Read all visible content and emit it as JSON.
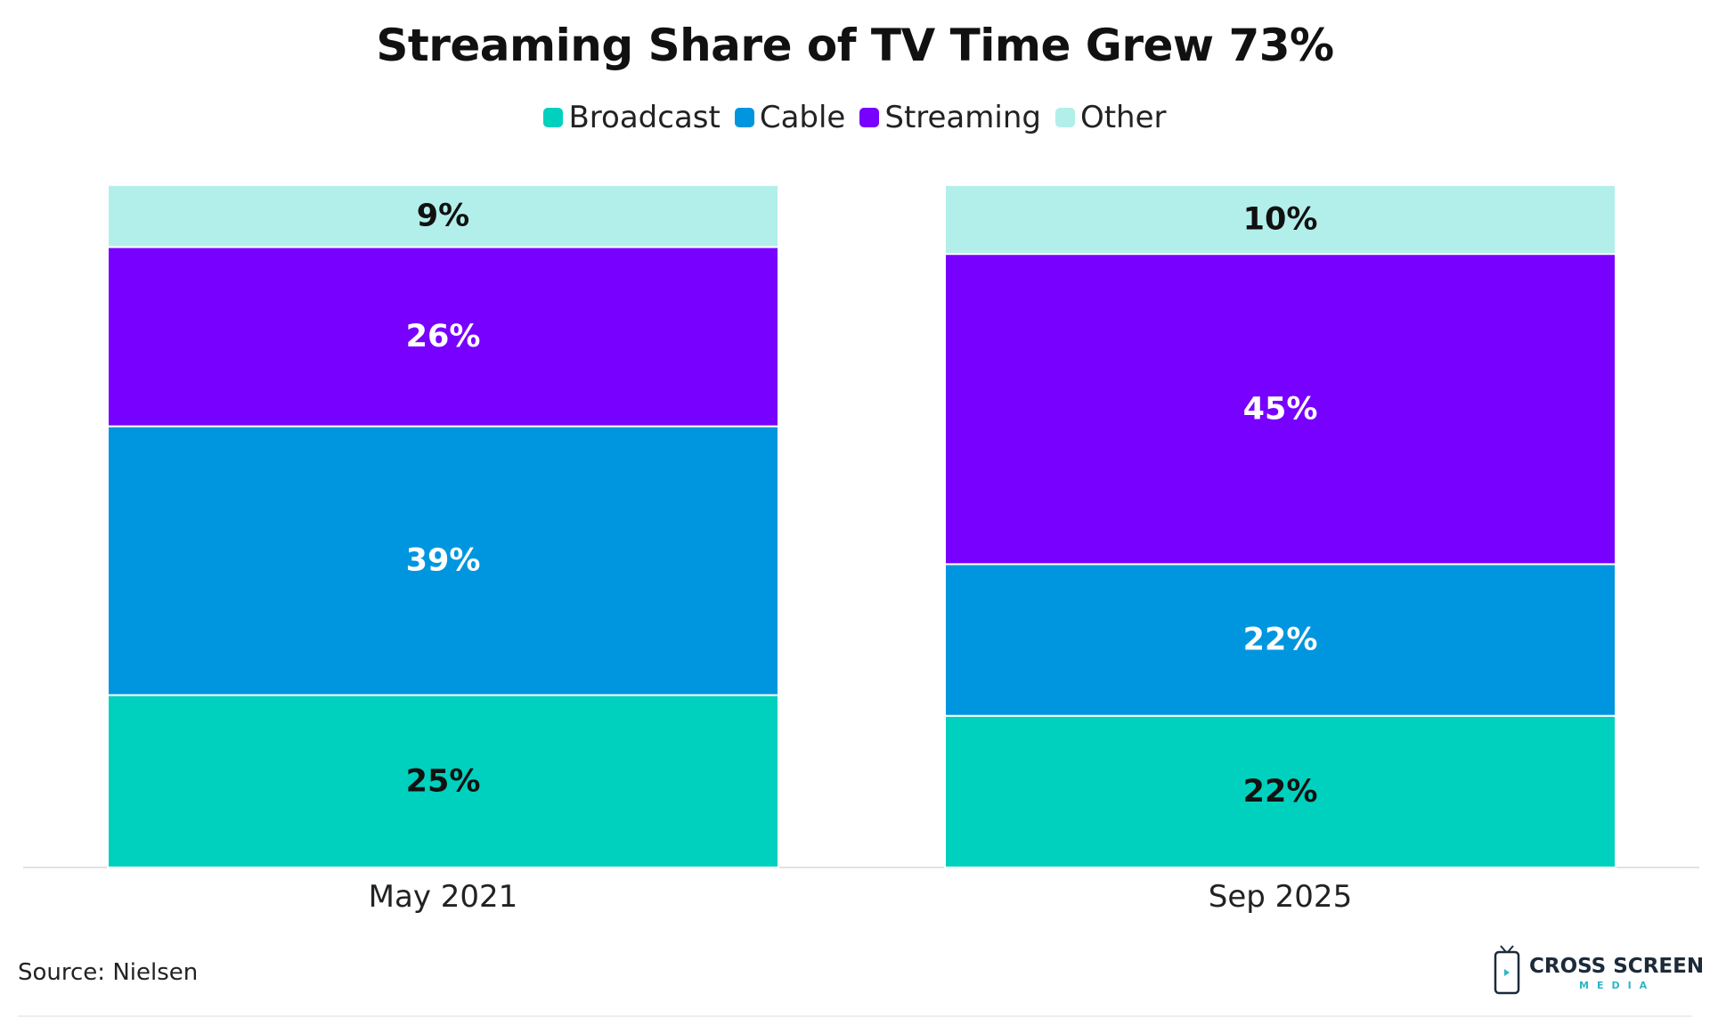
{
  "chart_data": {
    "type": "bar",
    "stacked": true,
    "title": "Streaming Share of TV Time Grew 73%",
    "categories": [
      "May 2021",
      "Sep 2025"
    ],
    "series": [
      {
        "name": "Broadcast",
        "color": "#00d1be",
        "values": [
          25,
          22
        ],
        "labels": [
          "25%",
          "22%"
        ],
        "label_color": "#111111"
      },
      {
        "name": "Cable",
        "color": "#0096df",
        "values": [
          39,
          22
        ],
        "labels": [
          "39%",
          "22%"
        ],
        "label_color": "#ffffff"
      },
      {
        "name": "Streaming",
        "color": "#7700ff",
        "values": [
          26,
          45
        ],
        "labels": [
          "26%",
          "45%"
        ],
        "label_color": "#ffffff"
      },
      {
        "name": "Other",
        "color": "#b3efea",
        "values": [
          9,
          10
        ],
        "labels": [
          "9%",
          "10%"
        ],
        "label_color": "#111111"
      }
    ],
    "xlabel": "",
    "ylabel": "",
    "ylim": [
      0,
      100
    ],
    "grid": false,
    "legend": "top-center"
  },
  "source": "Source: Nielsen",
  "logo": {
    "name_top": "CROSS SCREEN",
    "name_bottom": "MEDIA"
  }
}
